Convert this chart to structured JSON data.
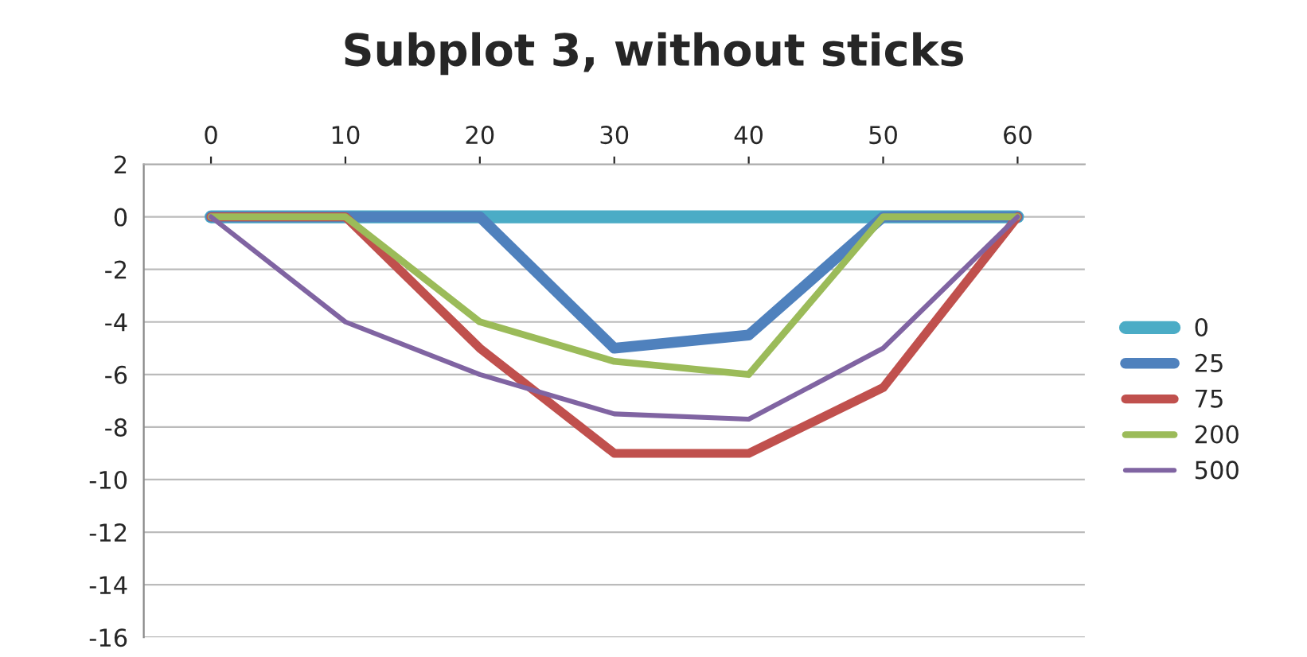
{
  "chart_data": {
    "type": "line",
    "title": "Subplot 3, without sticks",
    "x": [
      0,
      10,
      20,
      30,
      40,
      50,
      60
    ],
    "series": [
      {
        "name": "0",
        "color": "#4bacc6",
        "values": [
          0,
          0,
          0,
          0,
          0,
          0,
          0
        ]
      },
      {
        "name": "25",
        "color": "#4f81bd",
        "values": [
          0,
          0,
          0,
          -5,
          -4.5,
          0,
          0
        ]
      },
      {
        "name": "75",
        "color": "#c0504d",
        "values": [
          0,
          0,
          -5,
          -9,
          -9,
          -6.5,
          0
        ]
      },
      {
        "name": "200",
        "color": "#9bbb59",
        "values": [
          0,
          0,
          -4,
          -5.5,
          -6,
          0,
          0
        ]
      },
      {
        "name": "500",
        "color": "#8064a2",
        "values": [
          0,
          -4,
          -6,
          -7.5,
          -7.7,
          -5,
          0
        ]
      }
    ],
    "xlim": [
      -5,
      65
    ],
    "xticks": [
      0,
      10,
      20,
      30,
      40,
      50,
      60
    ],
    "ylim": [
      -16,
      2
    ],
    "yticks": [
      -16,
      -14,
      -12,
      -10,
      -8,
      -6,
      -4,
      -2,
      0,
      2
    ],
    "grid": "y",
    "legend": "right",
    "marker": "none",
    "line_style": "solid"
  }
}
